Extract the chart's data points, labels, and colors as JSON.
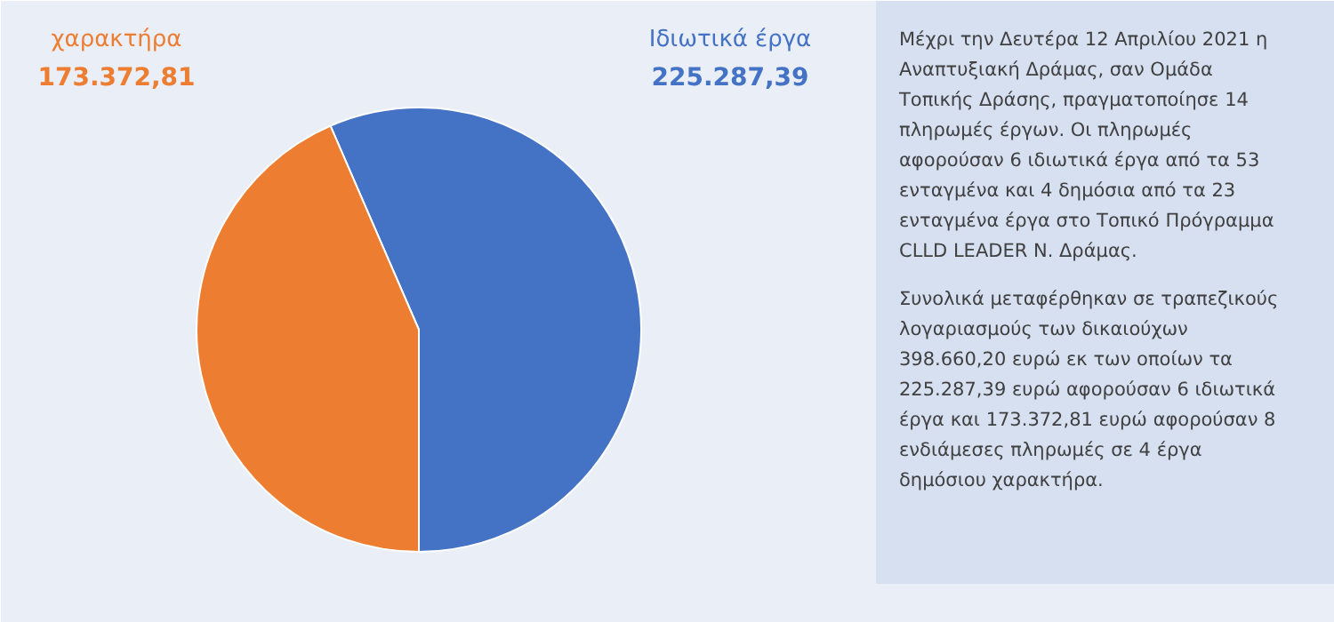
{
  "chart_data": {
    "type": "pie",
    "categories": [
      "Ιδιωτικά έργα",
      "χαρακτήρα"
    ],
    "values": [
      225287.39,
      173372.81
    ],
    "colors": [
      "#4472c4",
      "#ed7d31"
    ],
    "value_labels": [
      "225.287,39",
      "173.372,81"
    ],
    "annotations": [
      "Μέχρι την Δευτέρα 12 Απριλίου 2021 η Αναπτυξιακή Δράμας, σαν Ομάδα Τοπικής Δράσης, πραγματοποίησε 14 πληρωμές έργων. Οι πληρωμές αφορούσαν 6 ιδιωτικά έργα από τα 53 ενταγμένα και 4 δημόσια από τα 23 ενταγμένα έργα στο Τοπικό Πρόγραμμα CLLD LEADER Ν. Δράμας.",
      "Συνολικά μεταφέρθηκαν σε τραπεζικούς λογαριασμούς των δικαιούχων 398.660,20 ευρώ εκ των οποίων τα 225.287,39 ευρώ αφορούσαν 6 ιδιωτικά έργα και 173.372,81 ευρώ αφορούσαν 8 ενδιάμεσες πληρωμές σε 4 έργα δημόσιου χαρακτήρα."
    ]
  }
}
